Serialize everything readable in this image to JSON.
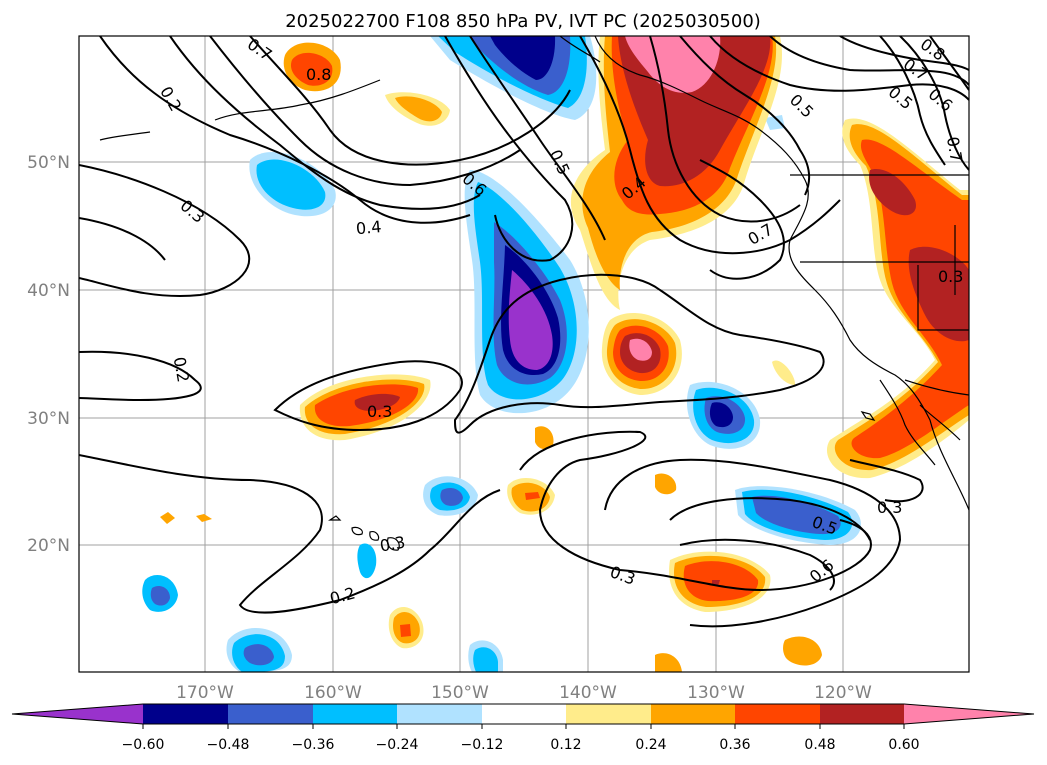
{
  "title": "2025022700 F108 850 hPa PV, IVT PC (2025030500)",
  "lat_labels": [
    "50°N",
    "40°N",
    "30°N",
    "20°N"
  ],
  "lon_labels": [
    "170°W",
    "160°W",
    "150°W",
    "140°W",
    "130°W",
    "120°W"
  ],
  "colorbar": {
    "ticks": [
      "−0.60",
      "−0.48",
      "−0.36",
      "−0.24",
      "−0.12",
      "0.12",
      "0.24",
      "0.36",
      "0.48",
      "0.60"
    ],
    "colors": [
      "#9932cc",
      "#00008b",
      "#3a5fcd",
      "#00bfff",
      "#b0e2ff",
      "#ffffff",
      "#ffec8b",
      "#ffa500",
      "#ff4500",
      "#b22222",
      "#ff82ab"
    ]
  },
  "contour_labels": [
    "0.2",
    "0.3",
    "0.4",
    "0.5",
    "0.6",
    "0.7",
    "0.8"
  ]
}
